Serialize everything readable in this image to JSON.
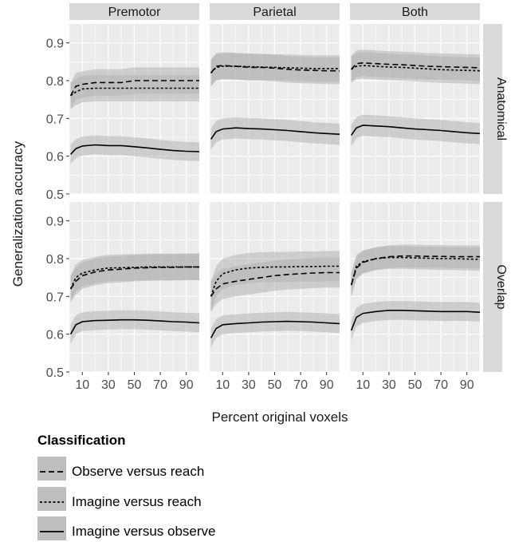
{
  "chart_data": {
    "type": "line",
    "facet_columns": [
      "Premotor",
      "Parietal",
      "Both"
    ],
    "facet_rows": [
      "Anatomical",
      "Overlap"
    ],
    "xlabel": "Percent original voxels",
    "ylabel": "Generalization accuracy",
    "xlim": [
      0,
      100
    ],
    "ylim": [
      0.5,
      0.95
    ],
    "x_ticks": [
      10,
      30,
      50,
      70,
      90
    ],
    "y_ticks": [
      0.5,
      0.6,
      0.7,
      0.8,
      0.9
    ],
    "y_tick_labels": [
      "0.5",
      "0.6",
      "0.7",
      "0.8",
      "0.9"
    ],
    "grid": true,
    "legend": {
      "title": "Classification",
      "position": "bottom",
      "entries": [
        "Observe versus reach",
        "Imagine versus reach",
        "Imagine versus observe"
      ]
    },
    "panels": [
      {
        "column": "Premotor",
        "row": "Anatomical",
        "series": [
          {
            "name": "Observe versus reach",
            "linetype": "dashed",
            "x": [
              1,
              5,
              10,
              20,
              30,
              40,
              50,
              60,
              70,
              80,
              90,
              100
            ],
            "y": [
              0.76,
              0.785,
              0.79,
              0.795,
              0.795,
              0.795,
              0.8,
              0.8,
              0.8,
              0.8,
              0.8,
              0.8
            ],
            "band": 0.035
          },
          {
            "name": "Imagine versus reach",
            "linetype": "dotted",
            "x": [
              1,
              5,
              10,
              20,
              30,
              40,
              50,
              60,
              70,
              80,
              90,
              100
            ],
            "y": [
              0.76,
              0.77,
              0.778,
              0.78,
              0.78,
              0.78,
              0.78,
              0.78,
              0.78,
              0.78,
              0.78,
              0.78
            ],
            "band": 0.035
          },
          {
            "name": "Imagine versus observe",
            "linetype": "solid",
            "x": [
              1,
              5,
              10,
              20,
              30,
              40,
              50,
              60,
              70,
              80,
              90,
              100
            ],
            "y": [
              0.605,
              0.62,
              0.627,
              0.63,
              0.628,
              0.628,
              0.625,
              0.622,
              0.618,
              0.615,
              0.613,
              0.612
            ],
            "band": 0.025
          }
        ]
      },
      {
        "column": "Parietal",
        "row": "Anatomical",
        "series": [
          {
            "name": "Observe versus reach",
            "linetype": "dashed",
            "x": [
              1,
              5,
              10,
              20,
              30,
              40,
              50,
              60,
              70,
              80,
              90,
              100
            ],
            "y": [
              0.82,
              0.838,
              0.84,
              0.838,
              0.835,
              0.835,
              0.833,
              0.83,
              0.828,
              0.827,
              0.826,
              0.826
            ],
            "band": 0.035
          },
          {
            "name": "Imagine versus reach",
            "linetype": "dotted",
            "x": [
              1,
              5,
              10,
              20,
              30,
              40,
              50,
              60,
              70,
              80,
              90,
              100
            ],
            "y": [
              0.82,
              0.835,
              0.838,
              0.838,
              0.837,
              0.836,
              0.835,
              0.834,
              0.833,
              0.832,
              0.832,
              0.832
            ],
            "band": 0.035
          },
          {
            "name": "Imagine versus observe",
            "linetype": "solid",
            "x": [
              1,
              5,
              10,
              20,
              30,
              40,
              50,
              60,
              70,
              80,
              90,
              100
            ],
            "y": [
              0.645,
              0.665,
              0.672,
              0.675,
              0.673,
              0.672,
              0.67,
              0.668,
              0.665,
              0.662,
              0.66,
              0.658
            ],
            "band": 0.028
          }
        ]
      },
      {
        "column": "Both",
        "row": "Anatomical",
        "series": [
          {
            "name": "Observe versus reach",
            "linetype": "dashed",
            "x": [
              1,
              5,
              10,
              20,
              30,
              40,
              50,
              60,
              70,
              80,
              90,
              100
            ],
            "y": [
              0.83,
              0.845,
              0.847,
              0.845,
              0.843,
              0.842,
              0.84,
              0.838,
              0.837,
              0.836,
              0.835,
              0.834
            ],
            "band": 0.035
          },
          {
            "name": "Imagine versus reach",
            "linetype": "dotted",
            "x": [
              1,
              5,
              10,
              20,
              30,
              40,
              50,
              60,
              70,
              80,
              90,
              100
            ],
            "y": [
              0.83,
              0.838,
              0.84,
              0.838,
              0.836,
              0.835,
              0.833,
              0.831,
              0.829,
              0.828,
              0.827,
              0.826
            ],
            "band": 0.035
          },
          {
            "name": "Imagine versus observe",
            "linetype": "solid",
            "x": [
              1,
              5,
              10,
              20,
              30,
              40,
              50,
              60,
              70,
              80,
              90,
              100
            ],
            "y": [
              0.655,
              0.675,
              0.682,
              0.68,
              0.678,
              0.675,
              0.672,
              0.67,
              0.668,
              0.665,
              0.662,
              0.66
            ],
            "band": 0.028
          }
        ]
      },
      {
        "column": "Premotor",
        "row": "Overlap",
        "series": [
          {
            "name": "Observe versus reach",
            "linetype": "dashed",
            "x": [
              1,
              5,
              10,
              20,
              30,
              40,
              50,
              60,
              70,
              80,
              90,
              100
            ],
            "y": [
              0.72,
              0.74,
              0.755,
              0.765,
              0.77,
              0.772,
              0.775,
              0.776,
              0.777,
              0.777,
              0.778,
              0.778
            ],
            "band": 0.035
          },
          {
            "name": "Imagine versus reach",
            "linetype": "dotted",
            "x": [
              1,
              5,
              10,
              20,
              30,
              40,
              50,
              60,
              70,
              80,
              90,
              100
            ],
            "y": [
              0.72,
              0.75,
              0.762,
              0.77,
              0.775,
              0.776,
              0.777,
              0.778,
              0.778,
              0.778,
              0.778,
              0.778
            ],
            "band": 0.035
          },
          {
            "name": "Imagine versus observe",
            "linetype": "solid",
            "x": [
              1,
              5,
              10,
              20,
              30,
              40,
              50,
              60,
              70,
              80,
              90,
              100
            ],
            "y": [
              0.6,
              0.625,
              0.633,
              0.636,
              0.637,
              0.638,
              0.638,
              0.637,
              0.635,
              0.633,
              0.632,
              0.63
            ],
            "band": 0.025
          }
        ]
      },
      {
        "column": "Parietal",
        "row": "Overlap",
        "series": [
          {
            "name": "Observe versus reach",
            "linetype": "dashed",
            "x": [
              1,
              5,
              10,
              20,
              30,
              40,
              50,
              60,
              70,
              80,
              90,
              100
            ],
            "y": [
              0.7,
              0.72,
              0.733,
              0.74,
              0.745,
              0.75,
              0.755,
              0.758,
              0.76,
              0.762,
              0.763,
              0.763
            ],
            "band": 0.04
          },
          {
            "name": "Imagine versus reach",
            "linetype": "dotted",
            "x": [
              1,
              5,
              10,
              20,
              30,
              40,
              50,
              60,
              70,
              80,
              90,
              100
            ],
            "y": [
              0.7,
              0.74,
              0.76,
              0.77,
              0.775,
              0.777,
              0.778,
              0.778,
              0.779,
              0.779,
              0.78,
              0.78
            ],
            "band": 0.04
          },
          {
            "name": "Imagine versus observe",
            "linetype": "solid",
            "x": [
              1,
              5,
              10,
              20,
              30,
              40,
              50,
              60,
              70,
              80,
              90,
              100
            ],
            "y": [
              0.59,
              0.615,
              0.625,
              0.628,
              0.63,
              0.632,
              0.633,
              0.634,
              0.633,
              0.632,
              0.63,
              0.628
            ],
            "band": 0.025
          }
        ]
      },
      {
        "column": "Both",
        "row": "Overlap",
        "series": [
          {
            "name": "Observe versus reach",
            "linetype": "dashed",
            "x": [
              1,
              5,
              10,
              20,
              30,
              40,
              50,
              60,
              70,
              80,
              90,
              100
            ],
            "y": [
              0.73,
              0.775,
              0.79,
              0.8,
              0.805,
              0.807,
              0.807,
              0.806,
              0.806,
              0.805,
              0.805,
              0.805
            ],
            "band": 0.03
          },
          {
            "name": "Imagine versus reach",
            "linetype": "dotted",
            "x": [
              1,
              5,
              10,
              20,
              30,
              40,
              50,
              60,
              70,
              80,
              90,
              100
            ],
            "y": [
              0.73,
              0.78,
              0.792,
              0.8,
              0.803,
              0.803,
              0.802,
              0.801,
              0.8,
              0.8,
              0.799,
              0.798
            ],
            "band": 0.03
          },
          {
            "name": "Imagine versus observe",
            "linetype": "solid",
            "x": [
              1,
              5,
              10,
              20,
              30,
              40,
              50,
              60,
              70,
              80,
              90,
              100
            ],
            "y": [
              0.61,
              0.645,
              0.655,
              0.66,
              0.663,
              0.663,
              0.662,
              0.661,
              0.66,
              0.66,
              0.66,
              0.658
            ],
            "band": 0.025
          }
        ]
      }
    ]
  },
  "colors": {
    "panel_bg": "#ebebeb",
    "grid": "#ffffff",
    "strip_bg": "#d9d9d9",
    "band": "#b3b3b3",
    "line": "#000000"
  }
}
